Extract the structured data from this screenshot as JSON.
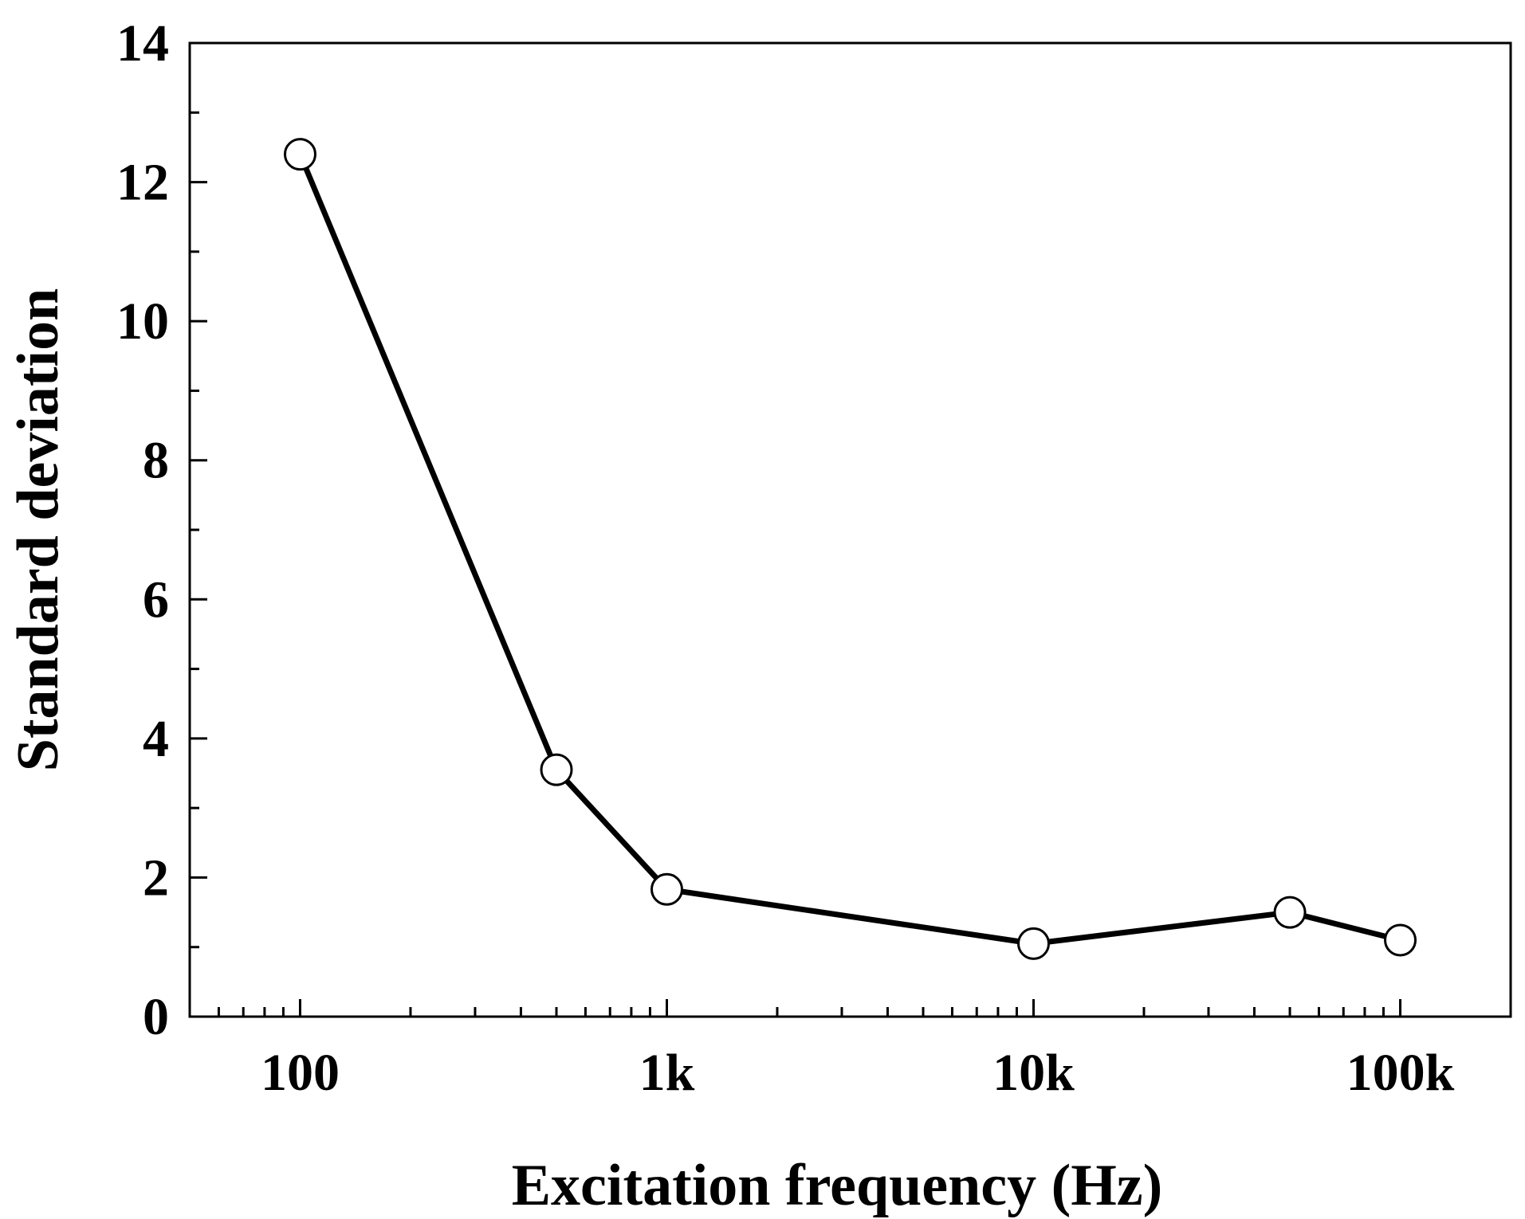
{
  "chart_data": {
    "type": "line",
    "title": "",
    "xlabel": "Excitation frequency (Hz)",
    "ylabel": "Standard deviation",
    "xscale": "log",
    "xlim": [
      50,
      200000
    ],
    "ylim": [
      0,
      14
    ],
    "grid": false,
    "legend": "none",
    "x_ticks": [
      {
        "value": 100,
        "label": "100"
      },
      {
        "value": 1000,
        "label": "1k"
      },
      {
        "value": 10000,
        "label": "10k"
      },
      {
        "value": 100000,
        "label": "100k"
      }
    ],
    "y_ticks": [
      {
        "value": 0,
        "label": "0"
      },
      {
        "value": 2,
        "label": "2"
      },
      {
        "value": 4,
        "label": "4"
      },
      {
        "value": 6,
        "label": "6"
      },
      {
        "value": 8,
        "label": "8"
      },
      {
        "value": 10,
        "label": "10"
      },
      {
        "value": 12,
        "label": "12"
      },
      {
        "value": 14,
        "label": "14"
      }
    ],
    "y_minor_step": 1,
    "series": [
      {
        "name": "Standard deviation",
        "marker": "open-circle",
        "color": "#000000",
        "x": [
          100,
          500,
          1000,
          10000,
          50000,
          100000
        ],
        "y": [
          12.4,
          3.55,
          1.83,
          1.05,
          1.5,
          1.1
        ]
      }
    ]
  }
}
